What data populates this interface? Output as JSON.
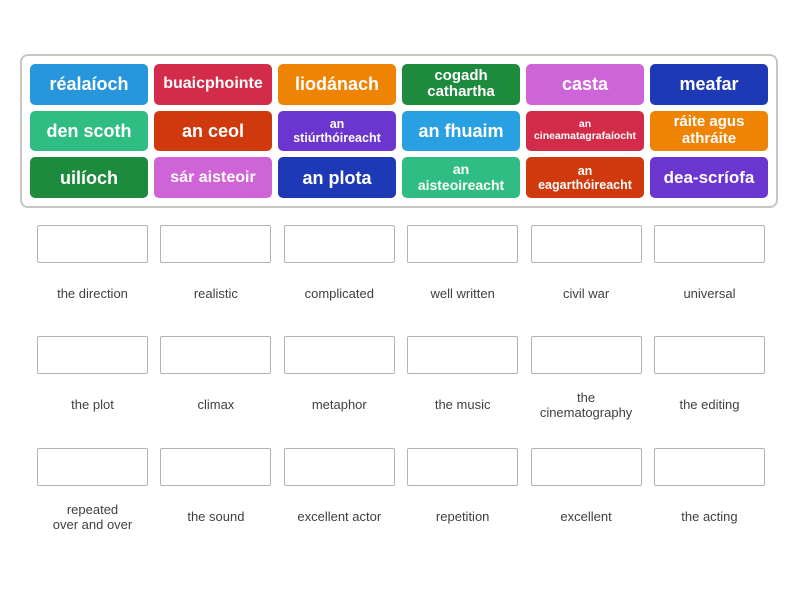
{
  "board": {
    "tiles": [
      {
        "label": "réalaíoch",
        "color": "#2796dd"
      },
      {
        "label": "buaicphointe",
        "color": "#d22c4a"
      },
      {
        "label": "liodánach",
        "color": "#ef8303"
      },
      {
        "label": "cogadh\ncathartha",
        "color": "#1d8a3d"
      },
      {
        "label": "casta",
        "color": "#cf63d8"
      },
      {
        "label": "meafar",
        "color": "#1e39b6"
      },
      {
        "label": "den scoth",
        "color": "#2fbd83"
      },
      {
        "label": "an ceol",
        "color": "#cf390d"
      },
      {
        "label": "an\nstiúrthóireacht",
        "color": "#6b36d0"
      },
      {
        "label": "an fhuaim",
        "color": "#29a0e2"
      },
      {
        "label": "an\ncineamatagrafaíocht",
        "color": "#d22c4a"
      },
      {
        "label": "ráite agus\nathráite",
        "color": "#ef8303"
      },
      {
        "label": "uilíoch",
        "color": "#1d8a3d"
      },
      {
        "label": "sár aisteoir",
        "color": "#cf63d8"
      },
      {
        "label": "an plota",
        "color": "#1e39b6"
      },
      {
        "label": "an\naisteoireacht",
        "color": "#2fbd83"
      },
      {
        "label": "an\neagarthóireacht",
        "color": "#cf390d"
      },
      {
        "label": "dea-scríofa",
        "color": "#6b36d0"
      }
    ]
  },
  "answers": {
    "row1": [
      "the direction",
      "realistic",
      "complicated",
      "well written",
      "civil war",
      "universal"
    ],
    "row2": [
      "the plot",
      "climax",
      "metaphor",
      "the music",
      "the\ncinematography",
      "the editing"
    ],
    "row3": [
      "repeated\nover and over",
      "the sound",
      "excellent actor",
      "repetition",
      "excellent",
      "the acting"
    ]
  }
}
